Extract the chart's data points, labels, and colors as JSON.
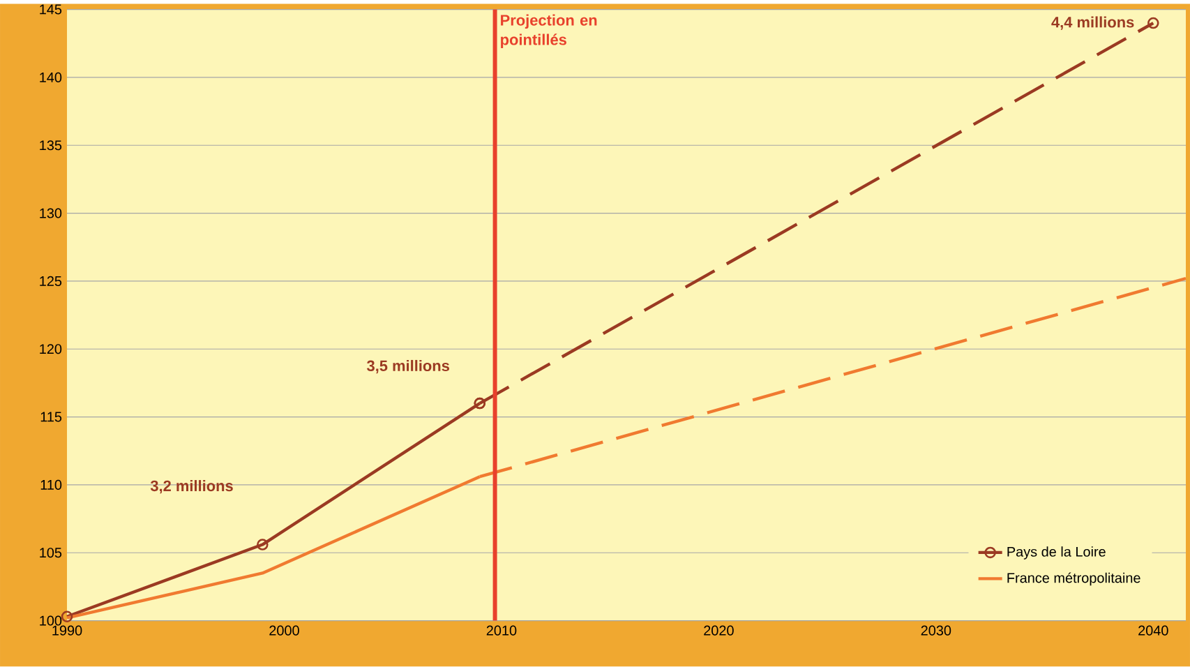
{
  "chart_data": {
    "type": "line",
    "xlim": [
      1990,
      2041.5
    ],
    "ylim": [
      100,
      145
    ],
    "xticks": [
      1990,
      2000,
      2010,
      2020,
      2030,
      2040
    ],
    "yticks": [
      100,
      105,
      110,
      115,
      120,
      125,
      130,
      135,
      140,
      145
    ],
    "grid": "y",
    "legend": "bottom right",
    "series": [
      {
        "name": "Pays de la Loire",
        "color": "#9b3a22",
        "x": [
          1990,
          1999,
          2009
        ],
        "values": [
          100.3,
          105.6,
          116
        ],
        "marker": "circle",
        "line_style": "solid"
      },
      {
        "color": "#9b3a22",
        "x": [
          2009,
          2040
        ],
        "values": [
          116,
          144
        ],
        "marker": "circle",
        "line_style": "dashed"
      },
      {
        "name": "France métropolitaine",
        "color": "#f07a30",
        "x": [
          1990,
          1999,
          2009
        ],
        "values": [
          100.2,
          103.5,
          110.6
        ],
        "marker": "none",
        "line_style": "solid"
      },
      {
        "color": "#f07a30",
        "x": [
          2009,
          2041.5
        ],
        "values": [
          110.6,
          125.2
        ],
        "marker": "none",
        "line_style": "dashed"
      }
    ],
    "ref_lines": [
      {
        "axis": "x",
        "value": 2009.7,
        "label": "Projection en pointillés",
        "color": "#e8412c"
      }
    ],
    "annotations": [
      "3,2 millions",
      {
        "text": "3,5 millions",
        "x": 2009,
        "y": 116
      },
      {
        "text": "4,4 millions",
        "x": 2040,
        "y": 144
      }
    ]
  }
}
